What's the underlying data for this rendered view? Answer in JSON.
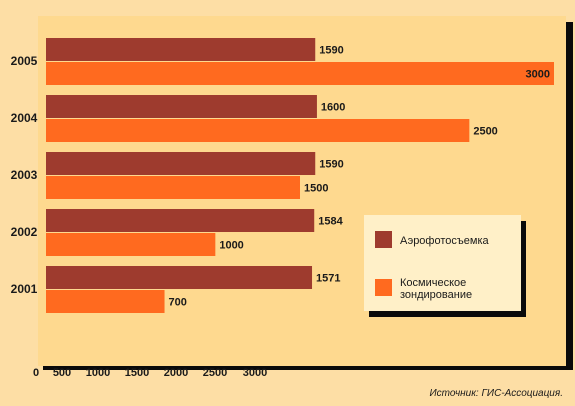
{
  "chart_data": {
    "type": "bar",
    "orientation": "horizontal",
    "categories": [
      "2005",
      "2004",
      "2003",
      "2002",
      "2001"
    ],
    "series": [
      {
        "name": "Аэрофотосъемка",
        "color": "#9e3b2e",
        "values": [
          1590,
          1600,
          1590,
          1584,
          1571
        ]
      },
      {
        "name": "Космическое зондирование",
        "color": "#ff6a1f",
        "values": [
          3000,
          2500,
          1500,
          1000,
          700
        ]
      }
    ],
    "x_ticks": [
      "0",
      "500",
      "1000",
      "1500",
      "2000",
      "2500",
      "3000"
    ],
    "x_tick_values": [
      0,
      500,
      1000,
      1500,
      2000,
      2500,
      3000
    ],
    "xlim": [
      0,
      3000
    ],
    "grid": false,
    "legend_position": "lower-right",
    "title": "",
    "xlabel": "",
    "ylabel": ""
  },
  "source_text": "Источник: ГИС-Ассоциация."
}
